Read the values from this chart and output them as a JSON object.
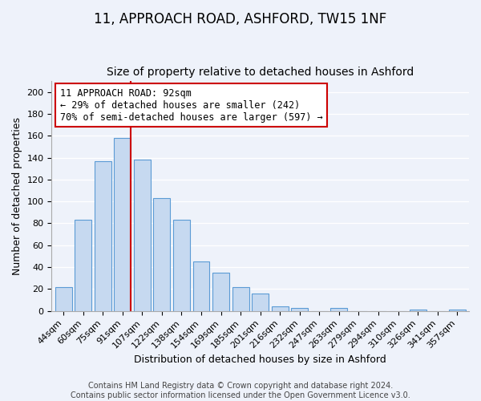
{
  "title": "11, APPROACH ROAD, ASHFORD, TW15 1NF",
  "subtitle": "Size of property relative to detached houses in Ashford",
  "xlabel": "Distribution of detached houses by size in Ashford",
  "ylabel": "Number of detached properties",
  "bar_labels": [
    "44sqm",
    "60sqm",
    "75sqm",
    "91sqm",
    "107sqm",
    "122sqm",
    "138sqm",
    "154sqm",
    "169sqm",
    "185sqm",
    "201sqm",
    "216sqm",
    "232sqm",
    "247sqm",
    "263sqm",
    "279sqm",
    "294sqm",
    "310sqm",
    "326sqm",
    "341sqm",
    "357sqm"
  ],
  "bar_values": [
    22,
    83,
    137,
    158,
    138,
    103,
    83,
    45,
    35,
    22,
    16,
    4,
    3,
    0,
    3,
    0,
    0,
    0,
    1,
    0,
    1
  ],
  "bar_color": "#c6d9f0",
  "bar_edge_color": "#5b9bd5",
  "vline_index": 3,
  "vline_color": "#cc0000",
  "annotation_line1": "11 APPROACH ROAD: 92sqm",
  "annotation_line2": "← 29% of detached houses are smaller (242)",
  "annotation_line3": "70% of semi-detached houses are larger (597) →",
  "annotation_box_edgecolor": "#cc0000",
  "annotation_box_facecolor": "#ffffff",
  "ylim": [
    0,
    210
  ],
  "yticks": [
    0,
    20,
    40,
    60,
    80,
    100,
    120,
    140,
    160,
    180,
    200
  ],
  "footer_line1": "Contains HM Land Registry data © Crown copyright and database right 2024.",
  "footer_line2": "Contains public sector information licensed under the Open Government Licence v3.0.",
  "title_fontsize": 12,
  "subtitle_fontsize": 10,
  "axis_label_fontsize": 9,
  "tick_fontsize": 8,
  "annotation_fontsize": 8.5,
  "footer_fontsize": 7,
  "background_color": "#eef2fa"
}
